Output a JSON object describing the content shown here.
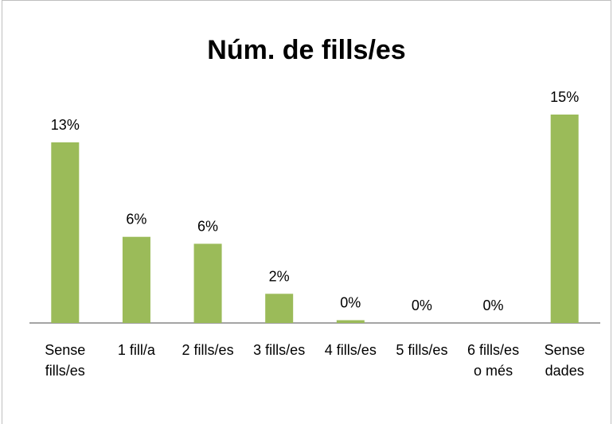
{
  "chart_data": {
    "type": "bar",
    "title": "Núm. de fills/es",
    "categories": [
      "Sense fills/es",
      "1 fill/a",
      "2 fills/es",
      "3 fills/es",
      "4 fills/es",
      "5 fills/es",
      "6 fills/es o més",
      "Sense dades"
    ],
    "values": [
      13.0,
      6.2,
      5.7,
      2.1,
      0.2,
      0,
      0,
      15.0
    ],
    "value_labels": [
      "13%",
      "6%",
      "6%",
      "2%",
      "0%",
      "0%",
      "0%",
      "15%"
    ],
    "color": "#9bbb59"
  }
}
